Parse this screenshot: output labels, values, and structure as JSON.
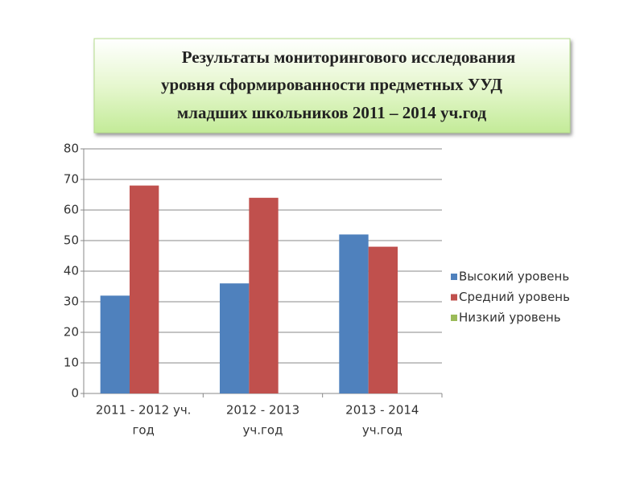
{
  "chart_data": {
    "type": "bar",
    "title": [
      "Результаты мониторингового исследования",
      "уровня сформированности  предметных  УУД",
      "младших школьников 2011 – 2014 уч.год"
    ],
    "categories": [
      [
        "2011 - 2012 уч.",
        "год"
      ],
      [
        "2012 - 2013",
        "уч.год"
      ],
      [
        "2013 - 2014",
        "уч.год"
      ]
    ],
    "series": [
      {
        "name": "Высокий уровень",
        "color": "#4f81bd",
        "values": [
          32,
          36,
          52
        ]
      },
      {
        "name": "Средний уровень",
        "color": "#c0504d",
        "values": [
          68,
          64,
          48
        ]
      },
      {
        "name": "Низкий уровень",
        "color": "#9bbb59",
        "values": [
          0,
          0,
          0
        ]
      }
    ],
    "ylim": [
      0,
      80
    ],
    "yticks": [
      0,
      10,
      20,
      30,
      40,
      50,
      60,
      70,
      80
    ],
    "grid": true,
    "legend": "right"
  }
}
